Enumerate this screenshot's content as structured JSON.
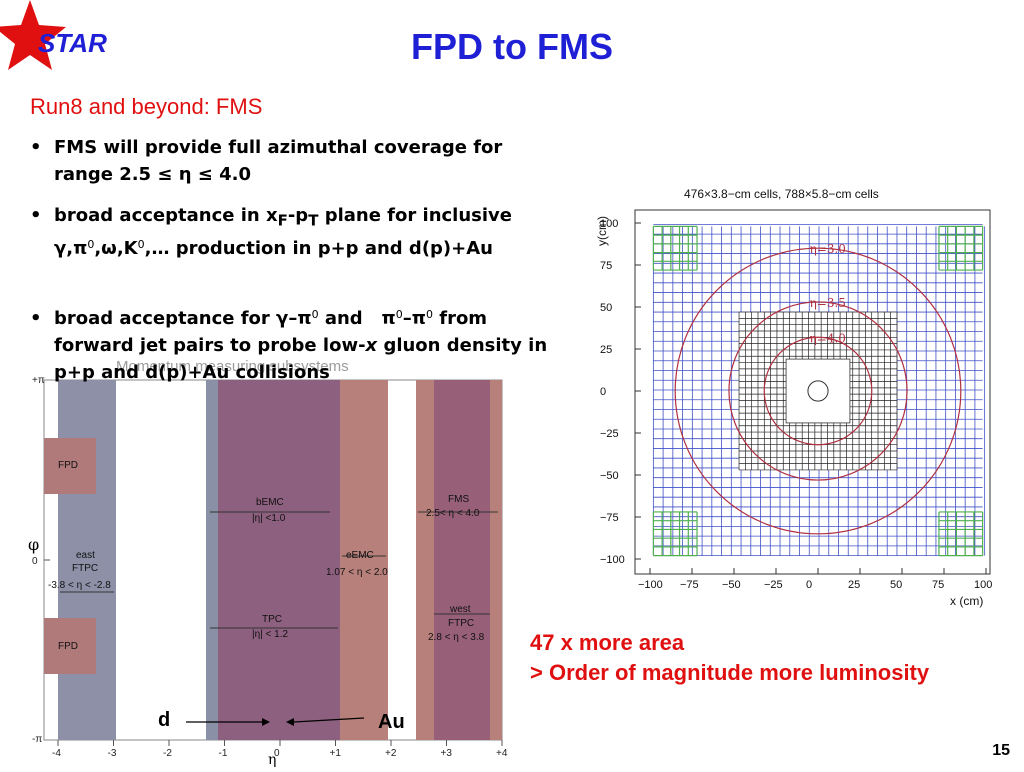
{
  "logo": {
    "text": "STAR"
  },
  "title": "FPD to FMS",
  "subtitle": "Run8 and beyond:  FMS",
  "bullets": [
    {
      "symbol": "•",
      "html": "FMS will provide full azimuthal coverage for range 2.5 &le; &eta; &le; 4.0"
    },
    {
      "symbol": "•",
      "html": "broad acceptance in x<sub>F</sub>-p<sub>T</sub> plane for inclusive &gamma;,&pi;<sup>0</sup>,&omega;,K<sup>0</sup>,&hellip; production in p+p and d(p)+Au"
    },
    {
      "symbol": "•",
      "html": "broad acceptance for &gamma;&ndash;&pi;<sup>0</sup> and &nbsp; &pi;<sup>0</sup>&ndash;&pi;<sup>0</sup> from forward jet pairs to probe low-<i>x</i> gluon density in p+p and d(p)+Au collisions"
    }
  ],
  "acceptance_figure": {
    "overlay_caption": "Momentum measuring subsystems",
    "y_top_label": "+π",
    "y_bottom_label": "-π",
    "y_zero_label": "0",
    "y_axis_symbol": "φ",
    "x_axis_symbol": "η",
    "x_ticks": [
      "-4",
      "-3",
      "-2",
      "-1",
      "0",
      "+1",
      "+2",
      "+3",
      "+4"
    ],
    "detectors": [
      {
        "name": "FPD"
      },
      {
        "name": "FPD"
      },
      {
        "name": "east",
        "line2": "FTPC",
        "range": "-3.8 < η < -2.8"
      },
      {
        "name": "bEMC",
        "range": "|η| <1.0"
      },
      {
        "name": "TPC",
        "range": "|η| < 1.2"
      },
      {
        "name": "eEMC",
        "range": "1.07 < η < 2.0"
      },
      {
        "name": "FMS",
        "range": "2.5< η < 4.0"
      },
      {
        "name": "west",
        "line2": "FTPC",
        "range": "2.8 < η < 3.8"
      }
    ],
    "beam_left": "d",
    "beam_right": "Au"
  },
  "fms_figure": {
    "top_caption": "476×3.8−cm cells, 788×5.8−cm cells",
    "xlabel": "x (cm)",
    "ylabel": "y(cm)",
    "ticks": [
      "−100",
      "−75",
      "−50",
      "−25",
      "0",
      "25",
      "50",
      "75",
      "100"
    ],
    "eta_labels": [
      "η=3.0",
      "η=3.5",
      "η=4.0"
    ],
    "colors": {
      "large_cells": "#4050c8",
      "corner_cells": "#50b050",
      "small_cells": "#222222",
      "eta_rings": "#b03040"
    }
  },
  "notes": {
    "line1": "47 x more area",
    "line2": "> Order of magnitude more luminosity"
  },
  "page_number": "15"
}
